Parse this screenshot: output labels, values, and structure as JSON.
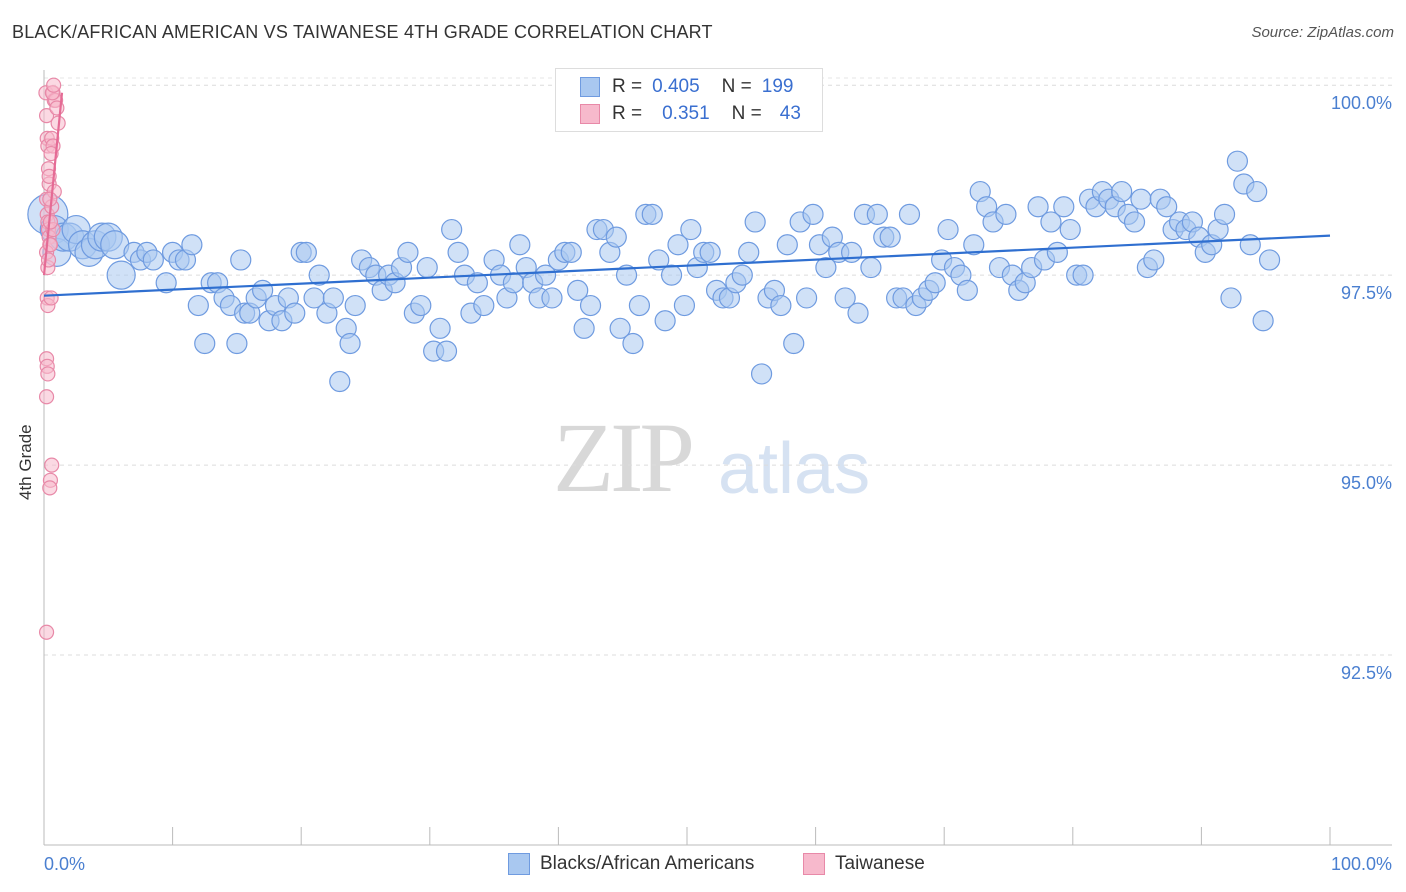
{
  "header": {
    "title": "BLACK/AFRICAN AMERICAN VS TAIWANESE 4TH GRADE CORRELATION CHART",
    "source": "Source: ZipAtlas.com"
  },
  "watermark": {
    "zip": "ZIP",
    "atlas": "atlas"
  },
  "legend": {
    "rows": [
      {
        "r_label": "R =",
        "r_value": "0.405",
        "n_label": "N =",
        "n_value": "199",
        "color": "#a9c8f0",
        "border": "#6f9be0"
      },
      {
        "r_label": "R =",
        "r_value": "0.351",
        "n_label": "N =",
        "n_value": "43",
        "color": "#f7b9cc",
        "border": "#e889a8"
      }
    ]
  },
  "bottom_legend": [
    {
      "label": "Blacks/African Americans",
      "color": "#a9c8f0",
      "border": "#6f9be0"
    },
    {
      "label": "Taiwanese",
      "color": "#f7b9cc",
      "border": "#e889a8"
    }
  ],
  "chart_data": {
    "type": "scatter",
    "title": "BLACK/AFRICAN AMERICAN VS TAIWANESE 4TH GRADE CORRELATION CHART",
    "ylabel": "4th Grade",
    "xlabel": "",
    "xlim": [
      0,
      100
    ],
    "ylim": [
      90.0,
      100.2
    ],
    "x_tick_labels": [
      "0.0%",
      "100.0%"
    ],
    "y_ticks": [
      {
        "value": 100.0,
        "label": "100.0%"
      },
      {
        "value": 97.5,
        "label": "97.5%"
      },
      {
        "value": 95.0,
        "label": "95.0%"
      },
      {
        "value": 92.5,
        "label": "92.5%"
      }
    ],
    "grid": "horizontal dashed",
    "series": [
      {
        "name": "Blacks/African Americans",
        "color": "#6f9be0",
        "fill": "#a9c8f0",
        "trend": {
          "x": [
            0,
            100
          ],
          "y": [
            97.23,
            98.02
          ]
        },
        "points": [
          [
            0.3,
            98.3
          ],
          [
            0.8,
            98.1
          ],
          [
            1.0,
            97.8
          ],
          [
            1.5,
            98.0
          ],
          [
            2.0,
            98.0
          ],
          [
            2.5,
            98.1
          ],
          [
            3.0,
            97.9
          ],
          [
            3.5,
            97.8
          ],
          [
            4.0,
            97.9
          ],
          [
            4.5,
            98.0
          ],
          [
            5.0,
            98.0
          ],
          [
            5.5,
            97.9
          ],
          [
            6.0,
            97.5
          ],
          [
            7.0,
            97.8
          ],
          [
            7.5,
            97.7
          ],
          [
            8.0,
            97.8
          ],
          [
            8.5,
            97.7
          ],
          [
            9.5,
            97.4
          ],
          [
            10.0,
            97.8
          ],
          [
            10.5,
            97.7
          ],
          [
            11.0,
            97.7
          ],
          [
            11.5,
            97.9
          ],
          [
            12.0,
            97.1
          ],
          [
            12.5,
            96.6
          ],
          [
            13.0,
            97.4
          ],
          [
            13.5,
            97.4
          ],
          [
            14.0,
            97.2
          ],
          [
            14.5,
            97.1
          ],
          [
            15.0,
            96.6
          ],
          [
            15.3,
            97.7
          ],
          [
            15.6,
            97.0
          ],
          [
            16.0,
            97.0
          ],
          [
            16.5,
            97.2
          ],
          [
            17.0,
            97.3
          ],
          [
            17.5,
            96.9
          ],
          [
            18.0,
            97.1
          ],
          [
            18.5,
            96.9
          ],
          [
            19.0,
            97.2
          ],
          [
            19.5,
            97.0
          ],
          [
            20.0,
            97.8
          ],
          [
            20.4,
            97.8
          ],
          [
            21.0,
            97.2
          ],
          [
            21.4,
            97.5
          ],
          [
            22.0,
            97.0
          ],
          [
            22.5,
            97.2
          ],
          [
            23.0,
            96.1
          ],
          [
            23.5,
            96.8
          ],
          [
            23.8,
            96.6
          ],
          [
            24.2,
            97.1
          ],
          [
            24.7,
            97.7
          ],
          [
            25.3,
            97.6
          ],
          [
            25.8,
            97.5
          ],
          [
            26.3,
            97.3
          ],
          [
            26.8,
            97.5
          ],
          [
            27.3,
            97.4
          ],
          [
            27.8,
            97.6
          ],
          [
            28.3,
            97.8
          ],
          [
            28.8,
            97.0
          ],
          [
            29.3,
            97.1
          ],
          [
            29.8,
            97.6
          ],
          [
            30.3,
            96.5
          ],
          [
            30.8,
            96.8
          ],
          [
            31.3,
            96.5
          ],
          [
            31.7,
            98.1
          ],
          [
            32.2,
            97.8
          ],
          [
            32.7,
            97.5
          ],
          [
            33.2,
            97.0
          ],
          [
            33.7,
            97.4
          ],
          [
            34.2,
            97.1
          ],
          [
            35.0,
            97.7
          ],
          [
            35.5,
            97.5
          ],
          [
            36.0,
            97.2
          ],
          [
            36.5,
            97.4
          ],
          [
            37.0,
            97.9
          ],
          [
            37.5,
            97.6
          ],
          [
            38.0,
            97.4
          ],
          [
            38.5,
            97.2
          ],
          [
            39.0,
            97.5
          ],
          [
            39.5,
            97.2
          ],
          [
            40.0,
            97.7
          ],
          [
            40.5,
            97.8
          ],
          [
            41.0,
            97.8
          ],
          [
            41.5,
            97.3
          ],
          [
            42.0,
            96.8
          ],
          [
            42.5,
            97.1
          ],
          [
            43.0,
            98.1
          ],
          [
            43.5,
            98.1
          ],
          [
            44.0,
            97.8
          ],
          [
            44.5,
            98.0
          ],
          [
            44.8,
            96.8
          ],
          [
            45.3,
            97.5
          ],
          [
            45.8,
            96.6
          ],
          [
            46.3,
            97.1
          ],
          [
            46.8,
            98.3
          ],
          [
            47.3,
            98.3
          ],
          [
            47.8,
            97.7
          ],
          [
            48.3,
            96.9
          ],
          [
            48.8,
            97.5
          ],
          [
            49.3,
            97.9
          ],
          [
            49.8,
            97.1
          ],
          [
            50.3,
            98.1
          ],
          [
            50.8,
            97.6
          ],
          [
            51.3,
            97.8
          ],
          [
            51.8,
            97.8
          ],
          [
            52.3,
            97.3
          ],
          [
            52.8,
            97.2
          ],
          [
            53.3,
            97.2
          ],
          [
            53.8,
            97.4
          ],
          [
            54.3,
            97.5
          ],
          [
            54.8,
            97.8
          ],
          [
            55.3,
            98.2
          ],
          [
            55.8,
            96.2
          ],
          [
            56.3,
            97.2
          ],
          [
            56.8,
            97.3
          ],
          [
            57.3,
            97.1
          ],
          [
            57.8,
            97.9
          ],
          [
            58.3,
            96.6
          ],
          [
            58.8,
            98.2
          ],
          [
            59.3,
            97.2
          ],
          [
            59.8,
            98.3
          ],
          [
            60.3,
            97.9
          ],
          [
            60.8,
            97.6
          ],
          [
            61.3,
            98.0
          ],
          [
            61.8,
            97.8
          ],
          [
            62.3,
            97.2
          ],
          [
            62.8,
            97.8
          ],
          [
            63.3,
            97.0
          ],
          [
            63.8,
            98.3
          ],
          [
            64.3,
            97.6
          ],
          [
            64.8,
            98.3
          ],
          [
            65.3,
            98.0
          ],
          [
            65.8,
            98.0
          ],
          [
            66.3,
            97.2
          ],
          [
            66.8,
            97.2
          ],
          [
            67.3,
            98.3
          ],
          [
            67.8,
            97.1
          ],
          [
            68.3,
            97.2
          ],
          [
            68.8,
            97.3
          ],
          [
            69.3,
            97.4
          ],
          [
            69.8,
            97.7
          ],
          [
            70.3,
            98.1
          ],
          [
            70.8,
            97.6
          ],
          [
            71.3,
            97.5
          ],
          [
            71.8,
            97.3
          ],
          [
            72.3,
            97.9
          ],
          [
            72.8,
            98.6
          ],
          [
            73.3,
            98.4
          ],
          [
            73.8,
            98.2
          ],
          [
            74.3,
            97.6
          ],
          [
            74.8,
            98.3
          ],
          [
            75.3,
            97.5
          ],
          [
            75.8,
            97.3
          ],
          [
            76.3,
            97.4
          ],
          [
            76.8,
            97.6
          ],
          [
            77.3,
            98.4
          ],
          [
            77.8,
            97.7
          ],
          [
            78.3,
            98.2
          ],
          [
            78.8,
            97.8
          ],
          [
            79.3,
            98.4
          ],
          [
            79.8,
            98.1
          ],
          [
            80.3,
            97.5
          ],
          [
            80.8,
            97.5
          ],
          [
            81.3,
            98.5
          ],
          [
            81.8,
            98.4
          ],
          [
            82.3,
            98.6
          ],
          [
            82.8,
            98.5
          ],
          [
            83.3,
            98.4
          ],
          [
            83.8,
            98.6
          ],
          [
            84.3,
            98.3
          ],
          [
            84.8,
            98.2
          ],
          [
            85.3,
            98.5
          ],
          [
            85.8,
            97.6
          ],
          [
            86.3,
            97.7
          ],
          [
            86.8,
            98.5
          ],
          [
            87.3,
            98.4
          ],
          [
            87.8,
            98.1
          ],
          [
            88.3,
            98.2
          ],
          [
            88.8,
            98.1
          ],
          [
            89.3,
            98.2
          ],
          [
            89.8,
            98.0
          ],
          [
            90.3,
            97.8
          ],
          [
            90.8,
            97.9
          ],
          [
            91.3,
            98.1
          ],
          [
            91.8,
            98.3
          ],
          [
            92.3,
            97.2
          ],
          [
            92.8,
            99.0
          ],
          [
            93.3,
            98.7
          ],
          [
            93.8,
            97.9
          ],
          [
            94.3,
            98.6
          ],
          [
            94.8,
            96.9
          ],
          [
            95.3,
            97.7
          ]
        ]
      },
      {
        "name": "Taiwanese",
        "color": "#e889a8",
        "fill": "#f7b9cc",
        "trend": {
          "x": [
            0,
            1.4
          ],
          "y": [
            97.5,
            99.9
          ]
        },
        "points": [
          [
            0.15,
            99.9
          ],
          [
            0.2,
            99.6
          ],
          [
            0.25,
            99.3
          ],
          [
            0.3,
            99.2
          ],
          [
            0.35,
            98.9
          ],
          [
            0.4,
            98.7
          ],
          [
            0.2,
            98.5
          ],
          [
            0.25,
            98.3
          ],
          [
            0.3,
            98.2
          ],
          [
            0.35,
            98.1
          ],
          [
            0.4,
            98.0
          ],
          [
            0.45,
            97.9
          ],
          [
            0.2,
            97.8
          ],
          [
            0.3,
            97.6
          ],
          [
            0.25,
            97.2
          ],
          [
            0.3,
            97.1
          ],
          [
            0.2,
            96.4
          ],
          [
            0.25,
            96.3
          ],
          [
            0.3,
            96.2
          ],
          [
            0.2,
            95.9
          ],
          [
            0.6,
            95.0
          ],
          [
            0.5,
            94.8
          ],
          [
            0.45,
            94.7
          ],
          [
            0.2,
            92.8
          ],
          [
            0.7,
            99.9
          ],
          [
            0.8,
            99.8
          ],
          [
            0.9,
            99.8
          ],
          [
            1.0,
            99.7
          ],
          [
            1.1,
            99.5
          ],
          [
            0.6,
            99.3
          ],
          [
            0.7,
            99.2
          ],
          [
            0.8,
            98.6
          ],
          [
            0.6,
            98.4
          ],
          [
            0.7,
            98.1
          ],
          [
            0.5,
            97.9
          ],
          [
            0.4,
            98.8
          ],
          [
            0.55,
            99.1
          ],
          [
            0.65,
            99.9
          ],
          [
            0.75,
            100.0
          ],
          [
            0.5,
            98.2
          ],
          [
            0.35,
            97.7
          ],
          [
            0.45,
            98.5
          ],
          [
            0.55,
            97.2
          ]
        ]
      }
    ]
  }
}
